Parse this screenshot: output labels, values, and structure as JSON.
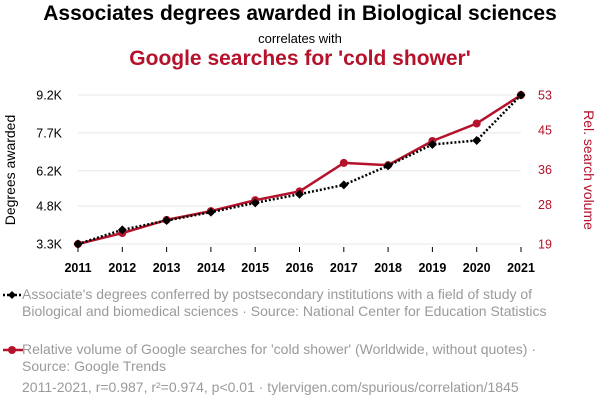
{
  "title": "Associates degrees awarded in Biological sciences",
  "subtitle": "correlates with",
  "title2": "Google searches for 'cold shower'",
  "legend": [
    "Associate's degrees conferred by postsecondary institutions with a field of study of Biological and biomedical sciences · Source: National Center for Education Statistics",
    "Relative volume of Google searches for 'cold shower' (Worldwide, without quotes) · Source: Google Trends"
  ],
  "footer": "2011-2021, r=0.987, r²=0.974, p<0.01 · tylervigen.com/spurious/correlation/1845",
  "colors": {
    "series1": "#000000",
    "series2": "#b5122b",
    "muted": "#9a9a9a"
  },
  "chart_data": {
    "type": "line",
    "x": [
      2011,
      2012,
      2013,
      2014,
      2015,
      2016,
      2017,
      2018,
      2019,
      2020,
      2021
    ],
    "series": [
      {
        "name": "Associate's degrees conferred by postsecondary institutions with a field of study of Biological and biomedical sciences",
        "axis": "left",
        "values": [
          3300,
          3860,
          4230,
          4560,
          4930,
          5270,
          5640,
          6400,
          7240,
          7400,
          9200
        ],
        "style": "dotted",
        "marker": "diamond"
      },
      {
        "name": "Relative volume of Google searches for 'cold shower' (Worldwide, without quotes)",
        "axis": "right",
        "values": [
          19,
          21.5,
          24.5,
          26.5,
          29,
          31,
          37.5,
          37,
          42.5,
          46.5,
          53
        ],
        "style": "solid",
        "marker": "circle"
      }
    ],
    "ylabel_left": "Degrees awarded",
    "ylabel_right": "Rel. search volume",
    "yticks_left": [
      3300,
      4800,
      6200,
      7700,
      9200
    ],
    "yticklabels_left": [
      "3.3K",
      "4.8K",
      "6.2K",
      "7.7K",
      "9.2K"
    ],
    "yticks_right": [
      19,
      28,
      36,
      45,
      53
    ],
    "ylim_left": [
      3300,
      9200
    ],
    "ylim_right": [
      19,
      53
    ],
    "xlim": [
      2011,
      2021
    ],
    "grid": "horizontal"
  }
}
